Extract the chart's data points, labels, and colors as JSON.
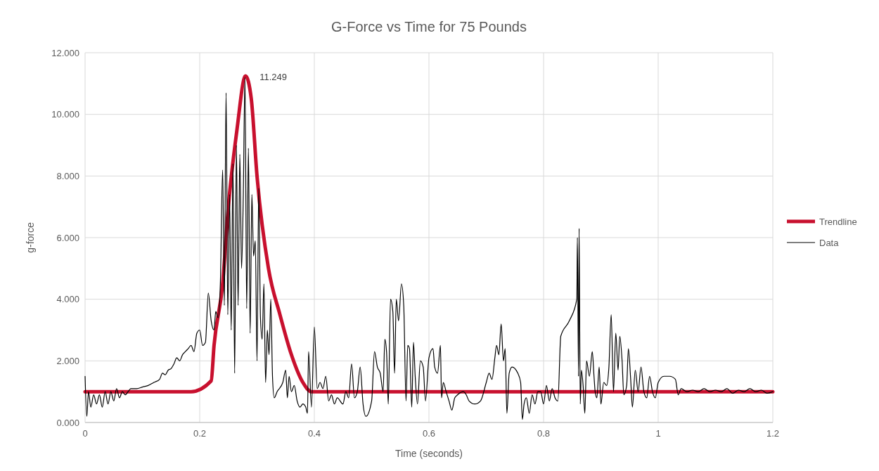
{
  "chart_data": {
    "type": "line",
    "title": "G-Force vs Time for 75 Pounds",
    "xlabel": "Time (seconds)",
    "ylabel": "g-force",
    "xlim": [
      0,
      1.2
    ],
    "xticks": [
      0,
      0.2,
      0.4,
      0.6,
      0.8,
      1,
      1.2
    ],
    "ylim": [
      0,
      12
    ],
    "yticks": [
      {
        "value": 0,
        "label": "0.000"
      },
      {
        "value": 2,
        "label": "2.000"
      },
      {
        "value": 4,
        "label": "4.000"
      },
      {
        "value": 6,
        "label": "6.000"
      },
      {
        "value": 8,
        "label": "8.000"
      },
      {
        "value": 10,
        "label": "10.000"
      },
      {
        "value": 12,
        "label": "12.000"
      }
    ],
    "grid": true,
    "legend": "right",
    "marker": "none",
    "line_style": "solid",
    "annotations": [
      {
        "text": "11.249",
        "x": 0.28,
        "y": 11.249
      }
    ],
    "series": [
      {
        "name": "Trendline",
        "color": "#c8102e",
        "x": [
          0,
          0.185,
          0.22,
          0.225,
          0.24,
          0.25,
          0.265,
          0.28,
          0.29,
          0.3,
          0.32,
          0.34,
          0.36,
          0.38,
          0.395,
          1.2
        ],
        "values": [
          1,
          1,
          1.35,
          2.5,
          4.5,
          7,
          9.5,
          11.249,
          10.5,
          8,
          5,
          3.5,
          2.2,
          1.3,
          1,
          1
        ]
      },
      {
        "name": "Data",
        "color": "#000000",
        "x": [
          0,
          0.003,
          0.006,
          0.01,
          0.015,
          0.02,
          0.025,
          0.03,
          0.035,
          0.04,
          0.045,
          0.05,
          0.055,
          0.06,
          0.065,
          0.07,
          0.08,
          0.09,
          0.1,
          0.11,
          0.12,
          0.13,
          0.135,
          0.14,
          0.145,
          0.15,
          0.155,
          0.16,
          0.165,
          0.17,
          0.175,
          0.18,
          0.185,
          0.19,
          0.195,
          0.2,
          0.205,
          0.21,
          0.215,
          0.22,
          0.225,
          0.228,
          0.232,
          0.236,
          0.24,
          0.243,
          0.246,
          0.249,
          0.252,
          0.255,
          0.258,
          0.261,
          0.264,
          0.267,
          0.27,
          0.273,
          0.276,
          0.279,
          0.282,
          0.285,
          0.288,
          0.291,
          0.294,
          0.297,
          0.3,
          0.303,
          0.306,
          0.309,
          0.312,
          0.315,
          0.318,
          0.321,
          0.324,
          0.327,
          0.33,
          0.335,
          0.345,
          0.35,
          0.353,
          0.356,
          0.36,
          0.365,
          0.37,
          0.375,
          0.38,
          0.385,
          0.388,
          0.39,
          0.395,
          0.4,
          0.405,
          0.41,
          0.415,
          0.42,
          0.425,
          0.43,
          0.435,
          0.44,
          0.45,
          0.455,
          0.46,
          0.465,
          0.47,
          0.475,
          0.48,
          0.485,
          0.49,
          0.5,
          0.505,
          0.51,
          0.515,
          0.52,
          0.523,
          0.526,
          0.529,
          0.533,
          0.537,
          0.54,
          0.543,
          0.547,
          0.552,
          0.556,
          0.56,
          0.563,
          0.566,
          0.57,
          0.573,
          0.576,
          0.58,
          0.585,
          0.59,
          0.594,
          0.6,
          0.607,
          0.61,
          0.615,
          0.62,
          0.622,
          0.625,
          0.63,
          0.635,
          0.64,
          0.645,
          0.65,
          0.66,
          0.665,
          0.67,
          0.68,
          0.69,
          0.7,
          0.705,
          0.71,
          0.715,
          0.718,
          0.722,
          0.726,
          0.73,
          0.733,
          0.736,
          0.74,
          0.745,
          0.755,
          0.76,
          0.763,
          0.766,
          0.77,
          0.775,
          0.78,
          0.785,
          0.79,
          0.795,
          0.8,
          0.805,
          0.81,
          0.815,
          0.82,
          0.825,
          0.83,
          0.845,
          0.858,
          0.859,
          0.861,
          0.862,
          0.864,
          0.866,
          0.869,
          0.872,
          0.875,
          0.88,
          0.885,
          0.888,
          0.89,
          0.893,
          0.897,
          0.9,
          0.905,
          0.91,
          0.914,
          0.918,
          0.922,
          0.926,
          0.93,
          0.933,
          0.937,
          0.94,
          0.945,
          0.948,
          0.952,
          0.955,
          0.96,
          0.965,
          0.97,
          0.975,
          0.98,
          0.985,
          0.99,
          0.995,
          1,
          1.01,
          1.02,
          1.03,
          1.035,
          1.04,
          1.05,
          1.06,
          1.07,
          1.08,
          1.09,
          1.1,
          1.11,
          1.12,
          1.13,
          1.14,
          1.15,
          1.16,
          1.17,
          1.18,
          1.19,
          1.2
        ],
        "values": [
          1.5,
          0.2,
          1,
          0.5,
          0.9,
          0.6,
          0.9,
          0.5,
          1,
          0.6,
          1,
          0.7,
          1.1,
          0.8,
          1,
          0.9,
          1.1,
          1.1,
          1.15,
          1.2,
          1.3,
          1.4,
          1.6,
          1.55,
          1.7,
          1.75,
          1.9,
          2.1,
          2,
          2.2,
          2.3,
          2.4,
          2.5,
          2.3,
          2.9,
          3,
          2.5,
          2.6,
          4.2,
          3.3,
          3,
          3.6,
          3.4,
          4.5,
          8.2,
          3.8,
          10.7,
          3.5,
          7.4,
          3,
          8.4,
          1.6,
          9,
          3.8,
          8.7,
          5,
          7.3,
          11.2,
          3.7,
          8.9,
          2.9,
          7.4,
          5.4,
          5.9,
          2,
          7.6,
          3.4,
          2.7,
          4.5,
          1.3,
          3,
          2.2,
          4,
          1.5,
          0.8,
          1,
          1.3,
          1.7,
          0.8,
          1.5,
          1,
          1.2,
          0.7,
          0.5,
          0.6,
          0.5,
          0.3,
          2.3,
          0.5,
          3.1,
          1.1,
          1.3,
          1.1,
          1.5,
          0.7,
          0.9,
          0.6,
          0.8,
          0.6,
          1,
          0.8,
          1.9,
          0.8,
          1,
          1.8,
          0.6,
          0.2,
          0.7,
          2.3,
          1.8,
          1.6,
          1,
          2.7,
          2.3,
          0.6,
          4,
          3.6,
          1.6,
          4,
          3.3,
          4.5,
          3.8,
          0.7,
          2.5,
          2.4,
          0.5,
          2.6,
          1.5,
          0.6,
          2,
          1.8,
          0.7,
          2.1,
          2.4,
          1.8,
          1.6,
          2.5,
          0.8,
          1.3,
          1,
          0.7,
          0.4,
          0.8,
          0.9,
          1,
          0.9,
          0.7,
          0.6,
          0.7,
          1.3,
          1.6,
          1.4,
          2.1,
          2.5,
          2.2,
          3.2,
          2,
          2.4,
          0.3,
          1.6,
          1.8,
          1.6,
          1.3,
          0.1,
          0.6,
          0.8,
          0.3,
          0.9,
          0.6,
          1,
          1,
          0.6,
          1.2,
          0.7,
          1.1,
          0.8,
          0.7,
          2.8,
          3.3,
          4,
          6,
          1.5,
          6.3,
          0.6,
          1.7,
          1.2,
          0.3,
          2,
          1.5,
          2.3,
          1.5,
          1,
          0.8,
          1.8,
          0.6,
          1.3,
          1.2,
          1.8,
          3.5,
          1,
          2.9,
          1.7,
          2.8,
          2,
          0.9,
          1.2,
          2.4,
          1.4,
          0.5,
          1.7,
          1,
          1.8,
          1,
          0.8,
          1.5,
          1,
          0.8,
          1.3,
          1.5,
          1.5,
          1.4,
          0.9,
          1.1,
          1,
          1.05,
          1,
          1.1,
          1,
          1.05,
          1,
          1.1,
          0.95,
          1.05,
          1,
          1.1,
          1,
          1.05,
          0.95,
          1
        ]
      }
    ]
  }
}
